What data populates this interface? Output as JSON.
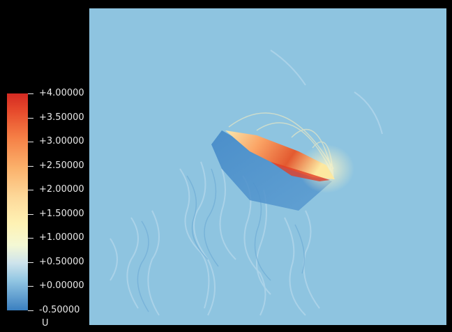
{
  "viewport": {
    "background_color": "#8ec4e0"
  },
  "colorbar": {
    "variable": "U",
    "ticks": [
      "+4.00000",
      "+3.50000",
      "+3.00000",
      "+2.50000",
      "+2.00000",
      "+1.50000",
      "+1.00000",
      "+0.50000",
      "+0.00000",
      "-0.50000"
    ],
    "min": -0.5,
    "max": 4.0
  }
}
